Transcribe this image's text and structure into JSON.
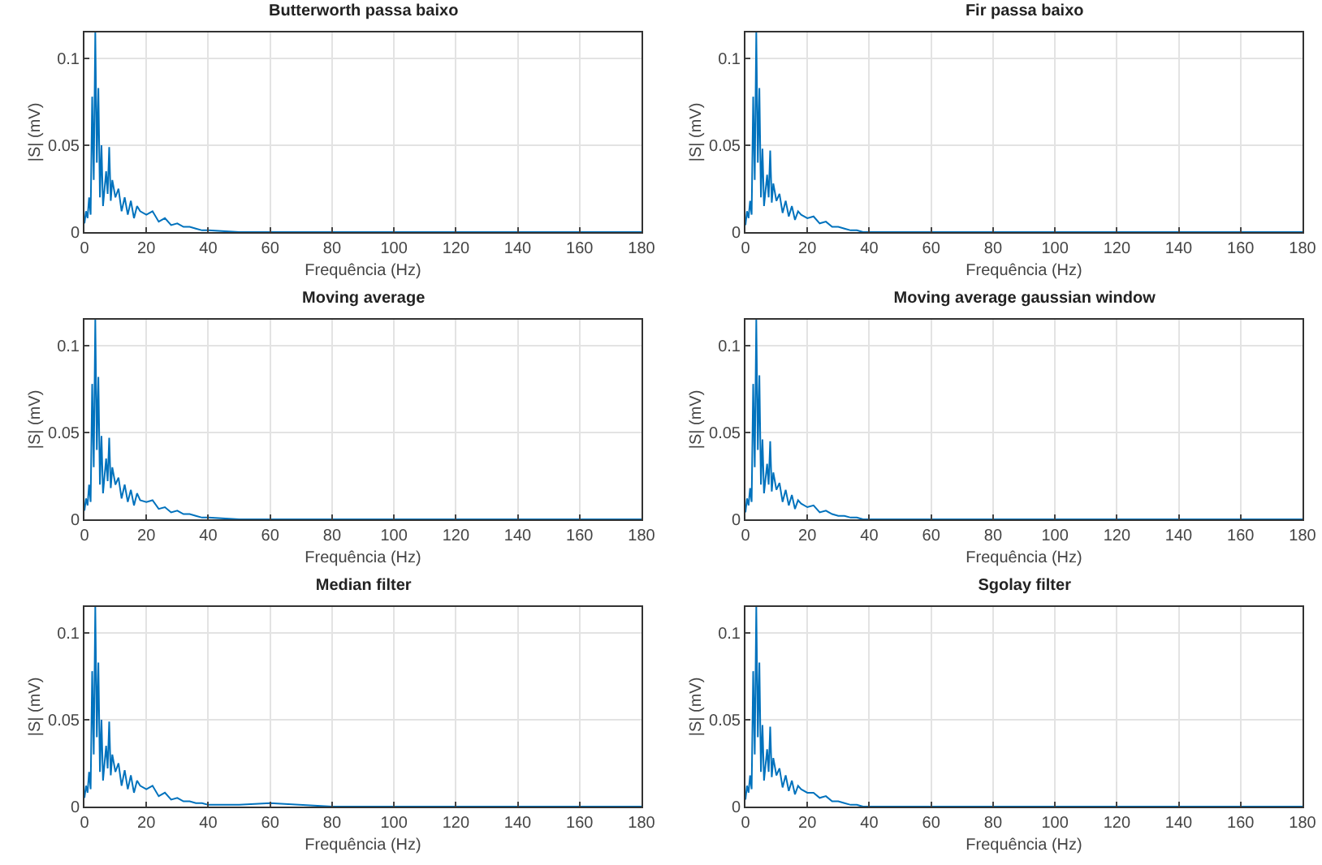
{
  "chart_data": [
    {
      "type": "line",
      "title": "Butterworth passa baixo",
      "xlabel": "Frequência (Hz)",
      "ylabel": "|S| (mV)",
      "xlim": [
        0,
        180
      ],
      "xticks": [
        0,
        20,
        40,
        60,
        80,
        100,
        120,
        140,
        160,
        180
      ],
      "ylim": [
        0,
        0.115
      ],
      "yticks": [
        0,
        0.05,
        0.1
      ],
      "grid": true,
      "x": [
        0,
        0.5,
        1,
        1.5,
        2,
        2.5,
        3,
        3.5,
        4,
        4.5,
        5,
        5.5,
        6,
        7,
        7.5,
        8,
        8.5,
        9,
        10,
        11,
        12,
        13,
        14,
        15,
        16,
        17,
        18,
        20,
        22,
        24,
        26,
        28,
        30,
        32,
        34,
        36,
        38,
        40,
        50,
        60,
        80,
        100,
        120,
        140,
        160,
        180
      ],
      "series": [
        {
          "color": "#0072bd",
          "values": [
            0.005,
            0.012,
            0.008,
            0.02,
            0.01,
            0.078,
            0.03,
            0.115,
            0.04,
            0.083,
            0.02,
            0.05,
            0.015,
            0.035,
            0.022,
            0.049,
            0.018,
            0.03,
            0.02,
            0.025,
            0.012,
            0.02,
            0.01,
            0.018,
            0.008,
            0.015,
            0.012,
            0.01,
            0.012,
            0.006,
            0.008,
            0.004,
            0.005,
            0.003,
            0.003,
            0.002,
            0.001,
            0.001,
            0,
            0,
            0,
            0,
            0,
            0,
            0,
            0
          ]
        }
      ]
    },
    {
      "type": "line",
      "title": "Fir passa baixo",
      "xlabel": "Frequência (Hz)",
      "ylabel": "|S| (mV)",
      "xlim": [
        0,
        180
      ],
      "xticks": [
        0,
        20,
        40,
        60,
        80,
        100,
        120,
        140,
        160,
        180
      ],
      "ylim": [
        0,
        0.115
      ],
      "yticks": [
        0,
        0.05,
        0.1
      ],
      "grid": true,
      "x": [
        0,
        0.5,
        1,
        1.5,
        2,
        2.5,
        3,
        3.5,
        4,
        4.5,
        5,
        5.5,
        6,
        7,
        7.5,
        8,
        8.5,
        9,
        10,
        11,
        12,
        13,
        14,
        15,
        16,
        17,
        18,
        20,
        22,
        24,
        26,
        28,
        30,
        32,
        34,
        36,
        38,
        40,
        50,
        60,
        80,
        100,
        120,
        140,
        160,
        180
      ],
      "series": [
        {
          "color": "#0072bd",
          "values": [
            0.004,
            0.012,
            0.008,
            0.018,
            0.01,
            0.078,
            0.03,
            0.115,
            0.04,
            0.083,
            0.02,
            0.048,
            0.015,
            0.033,
            0.02,
            0.047,
            0.017,
            0.028,
            0.018,
            0.022,
            0.011,
            0.018,
            0.009,
            0.015,
            0.007,
            0.012,
            0.01,
            0.008,
            0.009,
            0.005,
            0.006,
            0.003,
            0.003,
            0.002,
            0.001,
            0.001,
            0,
            0,
            0,
            0,
            0,
            0,
            0,
            0,
            0,
            0
          ]
        }
      ]
    },
    {
      "type": "line",
      "title": "Moving average",
      "xlabel": "Frequência (Hz)",
      "ylabel": "|S| (mV)",
      "xlim": [
        0,
        180
      ],
      "xticks": [
        0,
        20,
        40,
        60,
        80,
        100,
        120,
        140,
        160,
        180
      ],
      "ylim": [
        0,
        0.115
      ],
      "yticks": [
        0,
        0.05,
        0.1
      ],
      "grid": true,
      "x": [
        0,
        0.5,
        1,
        1.5,
        2,
        2.5,
        3,
        3.5,
        4,
        4.5,
        5,
        5.5,
        6,
        7,
        7.5,
        8,
        8.5,
        9,
        10,
        11,
        12,
        13,
        14,
        15,
        16,
        17,
        18,
        20,
        22,
        24,
        26,
        28,
        30,
        32,
        34,
        36,
        38,
        40,
        50,
        60,
        80,
        100,
        120,
        140,
        160,
        180
      ],
      "series": [
        {
          "color": "#0072bd",
          "values": [
            0.005,
            0.012,
            0.008,
            0.02,
            0.01,
            0.078,
            0.03,
            0.115,
            0.04,
            0.082,
            0.02,
            0.048,
            0.015,
            0.035,
            0.022,
            0.047,
            0.018,
            0.03,
            0.02,
            0.024,
            0.012,
            0.02,
            0.01,
            0.017,
            0.008,
            0.015,
            0.011,
            0.01,
            0.011,
            0.006,
            0.007,
            0.004,
            0.005,
            0.003,
            0.003,
            0.002,
            0.001,
            0.001,
            0,
            0,
            0,
            0,
            0,
            0,
            0,
            0
          ]
        }
      ]
    },
    {
      "type": "line",
      "title": "Moving average gaussian window",
      "xlabel": "Frequência (Hz)",
      "ylabel": "|S| (mV)",
      "xlim": [
        0,
        180
      ],
      "xticks": [
        0,
        20,
        40,
        60,
        80,
        100,
        120,
        140,
        160,
        180
      ],
      "ylim": [
        0,
        0.115
      ],
      "yticks": [
        0,
        0.05,
        0.1
      ],
      "grid": true,
      "x": [
        0,
        0.5,
        1,
        1.5,
        2,
        2.5,
        3,
        3.5,
        4,
        4.5,
        5,
        5.5,
        6,
        7,
        7.5,
        8,
        8.5,
        9,
        10,
        11,
        12,
        13,
        14,
        15,
        16,
        17,
        18,
        20,
        22,
        24,
        26,
        28,
        30,
        32,
        34,
        36,
        38,
        40,
        50,
        60,
        80,
        100,
        120,
        140,
        160,
        180
      ],
      "series": [
        {
          "color": "#0072bd",
          "values": [
            0.004,
            0.012,
            0.008,
            0.018,
            0.01,
            0.078,
            0.03,
            0.115,
            0.04,
            0.083,
            0.02,
            0.046,
            0.015,
            0.032,
            0.02,
            0.045,
            0.016,
            0.027,
            0.017,
            0.021,
            0.01,
            0.017,
            0.008,
            0.014,
            0.006,
            0.011,
            0.009,
            0.007,
            0.008,
            0.004,
            0.005,
            0.003,
            0.002,
            0.002,
            0.001,
            0.001,
            0,
            0,
            0,
            0,
            0,
            0,
            0,
            0,
            0,
            0
          ]
        }
      ]
    },
    {
      "type": "line",
      "title": "Median filter",
      "xlabel": "Frequência (Hz)",
      "ylabel": "|S| (mV)",
      "xlim": [
        0,
        180
      ],
      "xticks": [
        0,
        20,
        40,
        60,
        80,
        100,
        120,
        140,
        160,
        180
      ],
      "ylim": [
        0,
        0.115
      ],
      "yticks": [
        0,
        0.05,
        0.1
      ],
      "grid": true,
      "x": [
        0,
        0.5,
        1,
        1.5,
        2,
        2.5,
        3,
        3.5,
        4,
        4.5,
        5,
        5.5,
        6,
        7,
        7.5,
        8,
        8.5,
        9,
        10,
        11,
        12,
        13,
        14,
        15,
        16,
        17,
        18,
        20,
        22,
        24,
        26,
        28,
        30,
        32,
        34,
        36,
        38,
        40,
        50,
        60,
        80,
        100,
        120,
        140,
        160,
        180
      ],
      "series": [
        {
          "color": "#0072bd",
          "values": [
            0.005,
            0.012,
            0.008,
            0.02,
            0.01,
            0.078,
            0.03,
            0.115,
            0.04,
            0.083,
            0.02,
            0.05,
            0.015,
            0.035,
            0.022,
            0.049,
            0.018,
            0.03,
            0.02,
            0.025,
            0.012,
            0.021,
            0.01,
            0.018,
            0.008,
            0.015,
            0.012,
            0.01,
            0.012,
            0.006,
            0.008,
            0.004,
            0.005,
            0.003,
            0.003,
            0.002,
            0.002,
            0.001,
            0.001,
            0.002,
            0,
            0,
            0,
            0,
            0,
            0
          ]
        }
      ]
    },
    {
      "type": "line",
      "title": "Sgolay filter",
      "xlabel": "Frequência (Hz)",
      "ylabel": "|S| (mV)",
      "xlim": [
        0,
        180
      ],
      "xticks": [
        0,
        20,
        40,
        60,
        80,
        100,
        120,
        140,
        160,
        180
      ],
      "ylim": [
        0,
        0.115
      ],
      "yticks": [
        0,
        0.05,
        0.1
      ],
      "grid": true,
      "x": [
        0,
        0.5,
        1,
        1.5,
        2,
        2.5,
        3,
        3.5,
        4,
        4.5,
        5,
        5.5,
        6,
        7,
        7.5,
        8,
        8.5,
        9,
        10,
        11,
        12,
        13,
        14,
        15,
        16,
        17,
        18,
        20,
        22,
        24,
        26,
        28,
        30,
        32,
        34,
        36,
        38,
        40,
        50,
        60,
        80,
        100,
        120,
        140,
        160,
        180
      ],
      "series": [
        {
          "color": "#0072bd",
          "values": [
            0.004,
            0.012,
            0.008,
            0.018,
            0.01,
            0.078,
            0.03,
            0.115,
            0.04,
            0.083,
            0.02,
            0.047,
            0.015,
            0.033,
            0.02,
            0.046,
            0.017,
            0.028,
            0.018,
            0.022,
            0.011,
            0.018,
            0.009,
            0.015,
            0.007,
            0.012,
            0.01,
            0.008,
            0.008,
            0.005,
            0.006,
            0.003,
            0.003,
            0.002,
            0.001,
            0.001,
            0,
            0,
            0,
            0,
            0,
            0,
            0,
            0,
            0,
            0
          ]
        }
      ]
    }
  ]
}
